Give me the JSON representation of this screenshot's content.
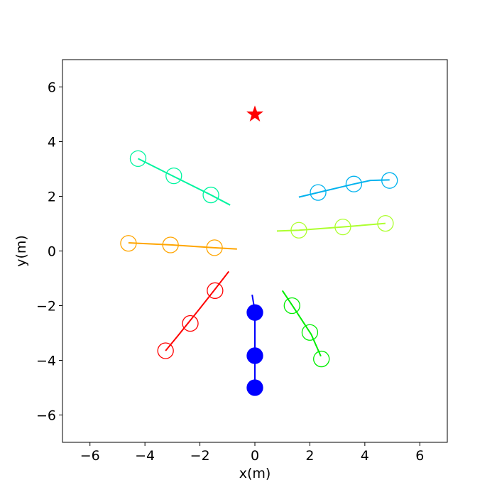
{
  "chart_data": {
    "type": "scatter",
    "title": "",
    "xlabel": "x(m)",
    "ylabel": "y(m)",
    "xlim": [
      -7,
      7
    ],
    "ylim": [
      -7,
      7
    ],
    "xticks": [
      -6,
      -4,
      -2,
      0,
      2,
      4,
      6
    ],
    "yticks": [
      -6,
      -4,
      -2,
      0,
      2,
      4,
      6
    ],
    "xtick_labels": [
      "−6",
      "−4",
      "−2",
      "0",
      "2",
      "4",
      "6"
    ],
    "ytick_labels": [
      "−6",
      "−4",
      "−2",
      "0",
      "2",
      "4",
      "6"
    ],
    "grid": false,
    "goal": {
      "x": 0.0,
      "y": 5.0,
      "marker": "star",
      "color": "#ff0000"
    },
    "series": [
      {
        "color": "#0000ff",
        "filled": true,
        "path": [
          [
            -0.1,
            -1.6
          ],
          [
            0.0,
            -2.2
          ],
          [
            0.0,
            -3.0
          ],
          [
            0.0,
            -3.8
          ],
          [
            0.0,
            -5.0
          ]
        ],
        "points": [
          [
            0.0,
            -2.25
          ],
          [
            0.0,
            -3.83
          ],
          [
            0.0,
            -5.0
          ]
        ]
      },
      {
        "color": "#ff0000",
        "filled": false,
        "path": [
          [
            -3.25,
            -3.65
          ],
          [
            -2.8,
            -3.1
          ],
          [
            -2.0,
            -2.1
          ],
          [
            -1.45,
            -1.4
          ],
          [
            -0.95,
            -0.75
          ]
        ],
        "points": [
          [
            -3.25,
            -3.65
          ],
          [
            -2.35,
            -2.65
          ],
          [
            -1.45,
            -1.45
          ]
        ]
      },
      {
        "color": "#ffa500",
        "filled": false,
        "path": [
          [
            -4.6,
            0.3
          ],
          [
            -3.0,
            0.22
          ],
          [
            -1.5,
            0.12
          ],
          [
            -0.65,
            0.07
          ]
        ],
        "points": [
          [
            -4.6,
            0.28
          ],
          [
            -3.07,
            0.22
          ],
          [
            -1.47,
            0.12
          ]
        ]
      },
      {
        "color": "#00f5a0",
        "filled": false,
        "path": [
          [
            -4.25,
            3.38
          ],
          [
            -3.0,
            2.75
          ],
          [
            -1.6,
            2.05
          ],
          [
            -0.9,
            1.68
          ]
        ],
        "points": [
          [
            -4.25,
            3.38
          ],
          [
            -2.95,
            2.75
          ],
          [
            -1.6,
            2.05
          ]
        ]
      },
      {
        "color": "#00b2ee",
        "filled": false,
        "path": [
          [
            1.6,
            1.97
          ],
          [
            2.3,
            2.14
          ],
          [
            3.6,
            2.45
          ],
          [
            4.2,
            2.58
          ],
          [
            4.9,
            2.6
          ]
        ],
        "points": [
          [
            2.3,
            2.14
          ],
          [
            3.6,
            2.45
          ],
          [
            4.9,
            2.58
          ]
        ]
      },
      {
        "color": "#adff2f",
        "filled": false,
        "path": [
          [
            0.8,
            0.73
          ],
          [
            1.6,
            0.76
          ],
          [
            3.2,
            0.88
          ],
          [
            4.75,
            1.01
          ]
        ],
        "points": [
          [
            1.6,
            0.76
          ],
          [
            3.2,
            0.88
          ],
          [
            4.75,
            1.01
          ]
        ]
      },
      {
        "color": "#00ee00",
        "filled": false,
        "path": [
          [
            1.0,
            -1.45
          ],
          [
            1.4,
            -2.05
          ],
          [
            2.05,
            -3.05
          ],
          [
            2.4,
            -3.85
          ]
        ],
        "points": [
          [
            1.35,
            -2.0
          ],
          [
            2.0,
            -2.98
          ],
          [
            2.42,
            -3.95
          ]
        ]
      }
    ]
  }
}
